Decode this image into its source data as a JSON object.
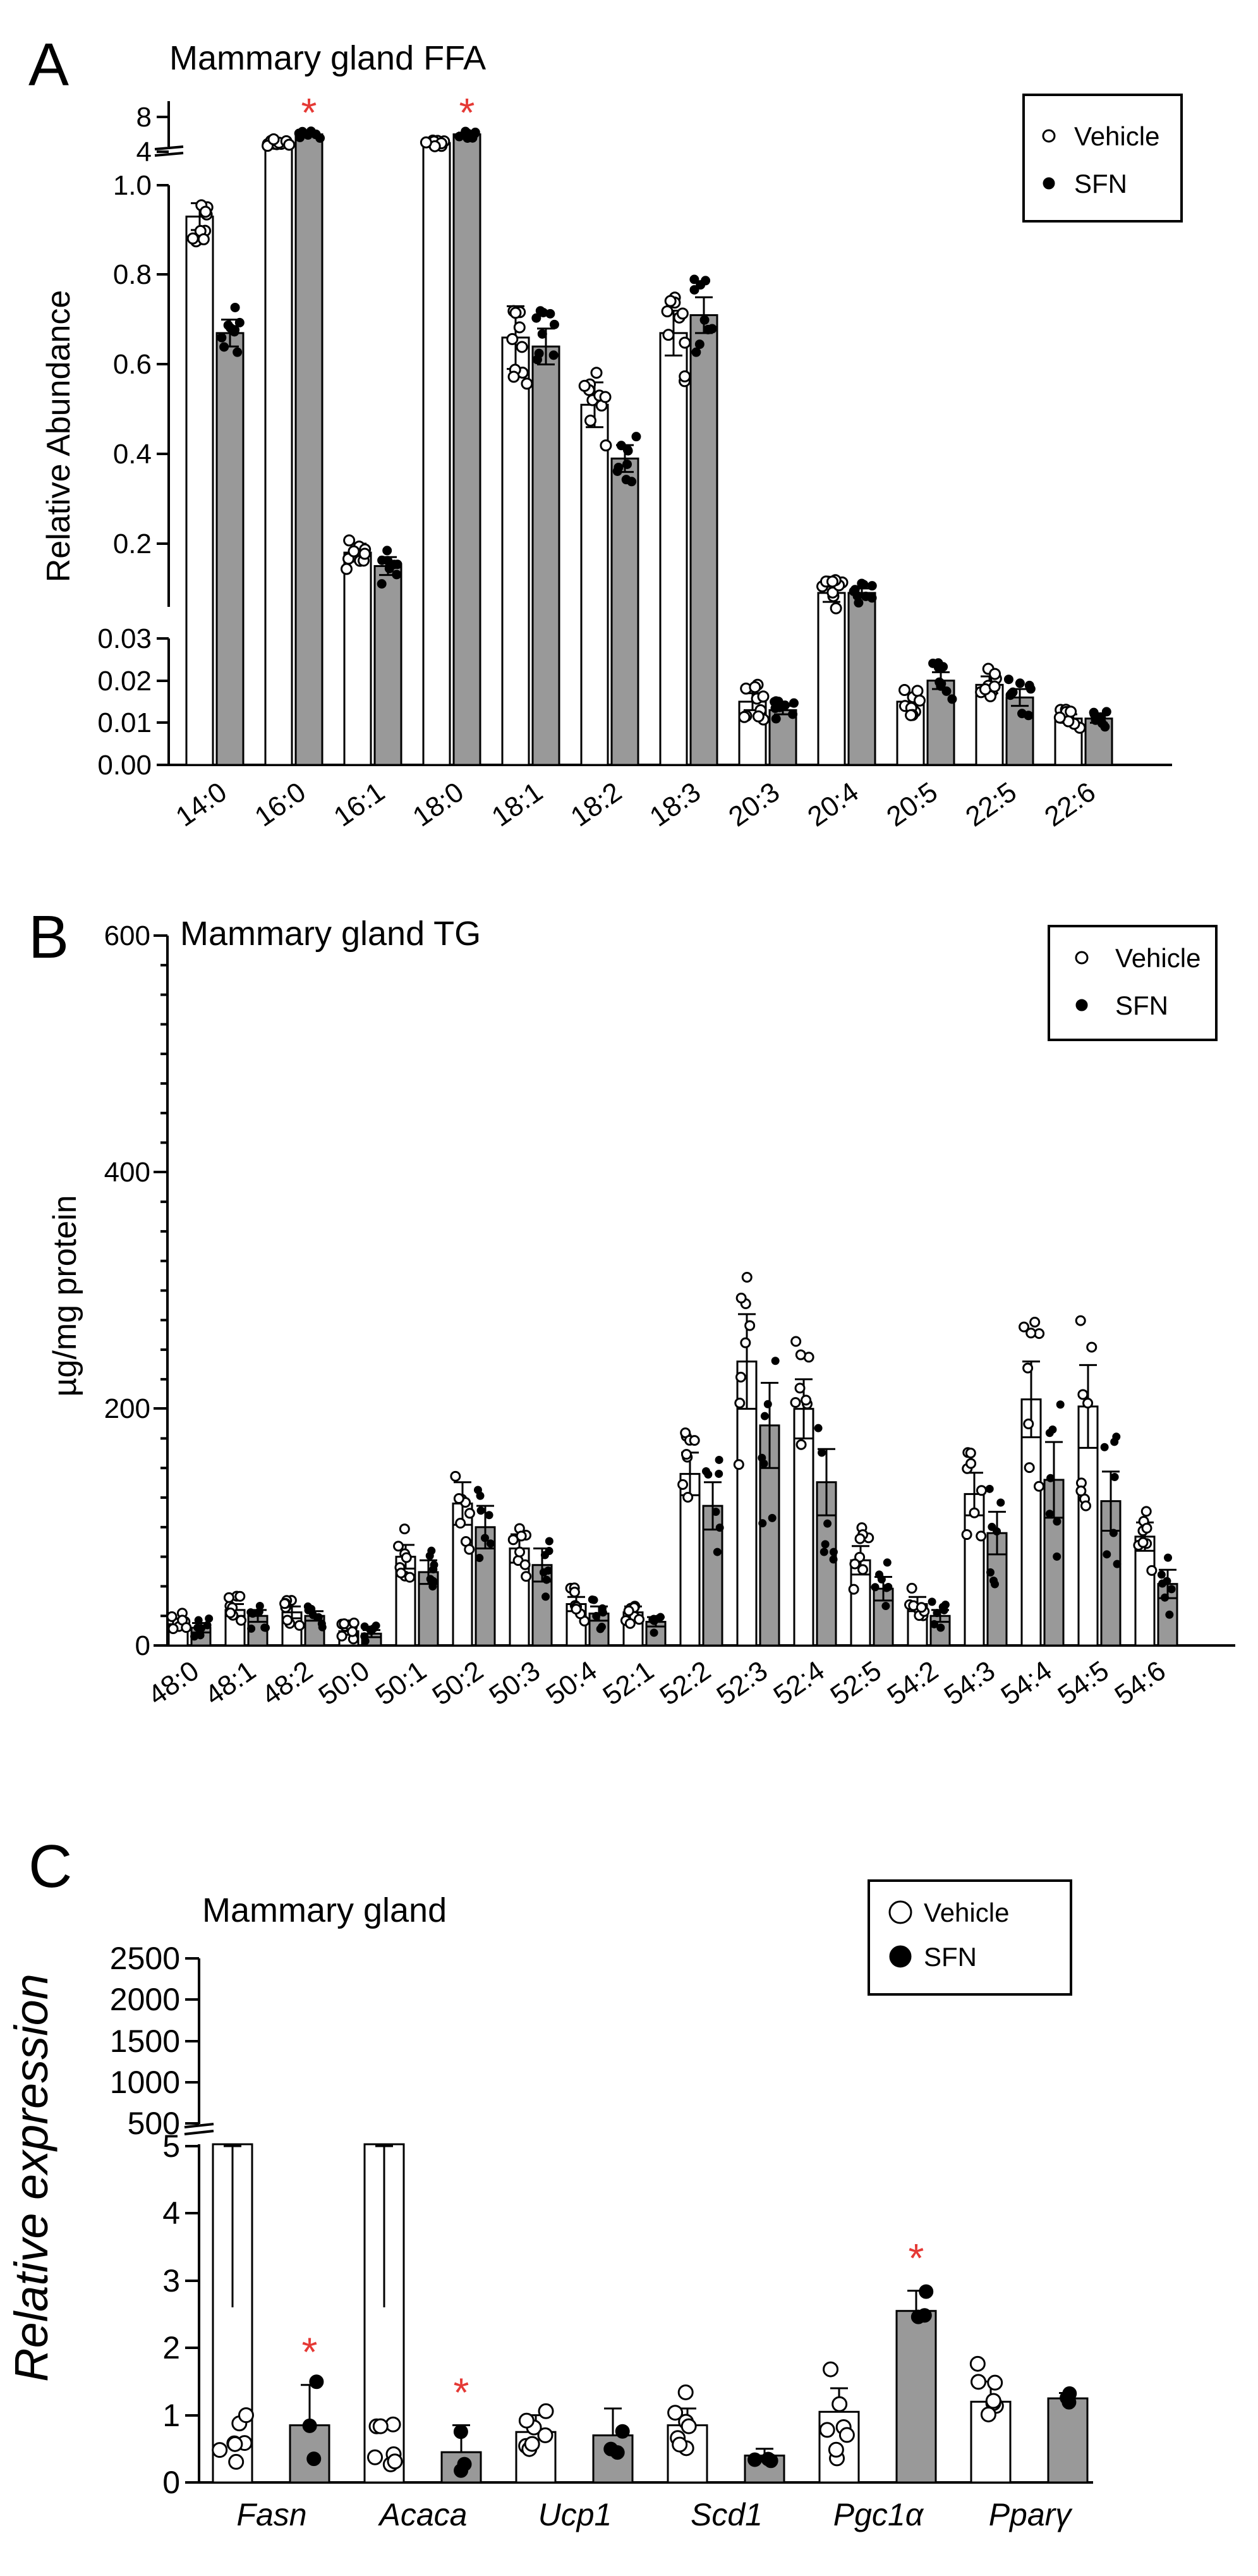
{
  "colors": {
    "vehicle_fill": "#ffffff",
    "sfn_fill": "#999999",
    "significance": "#e53935",
    "axis": "#000000"
  },
  "chart_data": [
    {
      "panel": "A",
      "type": "bar",
      "title": "Mammary gland FFA",
      "ylabel": "Relative  Abundance",
      "xlabel": "",
      "legend": [
        "Vehicle",
        "SFN"
      ],
      "legend_position": "top-right",
      "y_broken_axis": true,
      "y_segments": [
        {
          "range": [
            0,
            0.03
          ],
          "ticks": [
            "0.00",
            "0.01",
            "0.02",
            "0.03"
          ]
        },
        {
          "range": [
            0.05,
            1.0
          ],
          "ticks": [
            "0.2",
            "0.4",
            "0.6",
            "0.8",
            "1.0"
          ]
        },
        {
          "range": [
            3,
            9
          ],
          "ticks": [
            "4",
            "8"
          ]
        }
      ],
      "categories": [
        "14:0",
        "16:0",
        "16:1",
        "18:0",
        "18:1",
        "18:2",
        "18:3",
        "20:3",
        "20:4",
        "20:5",
        "22:5",
        "22:6"
      ],
      "series": [
        {
          "name": "Vehicle",
          "values": [
            0.93,
            5,
            0.18,
            5,
            0.66,
            0.51,
            0.67,
            0.015,
            0.09,
            0.015,
            0.019,
            0.011
          ],
          "sem": [
            0.03,
            0.2,
            0.02,
            0.2,
            0.07,
            0.05,
            0.05,
            0.002,
            0.02,
            0.002,
            0.002,
            0.001
          ]
        },
        {
          "name": "SFN",
          "values": [
            0.67,
            6,
            0.15,
            6,
            0.64,
            0.39,
            0.71,
            0.013,
            0.09,
            0.02,
            0.016,
            0.011
          ],
          "sem": [
            0.03,
            0.2,
            0.02,
            0.2,
            0.04,
            0.03,
            0.04,
            0.001,
            0.01,
            0.002,
            0.002,
            0.001
          ]
        }
      ],
      "significant": [
        "16:0",
        "18:0"
      ],
      "significance_marker": "*"
    },
    {
      "panel": "B",
      "type": "bar",
      "title": "Mammary gland TG",
      "ylabel": "µg/mg protein",
      "xlabel": "",
      "legend": [
        "Vehicle",
        "SFN"
      ],
      "legend_position": "top-right",
      "ylim": [
        0,
        600
      ],
      "yticks": [
        "0",
        "200",
        "400",
        "600"
      ],
      "categories": [
        "48:0",
        "48:1",
        "48:2",
        "50:0",
        "50:1",
        "50:2",
        "50:3",
        "50:4",
        "52:1",
        "52:2",
        "52:3",
        "52:4",
        "52:5",
        "54:2",
        "54:3",
        "54:4",
        "54:5",
        "54:6"
      ],
      "series": [
        {
          "name": "Vehicle",
          "values": [
            18,
            30,
            28,
            12,
            75,
            120,
            82,
            35,
            28,
            145,
            240,
            200,
            72,
            35,
            128,
            208,
            202,
            92
          ],
          "sem": [
            4,
            5,
            5,
            3,
            10,
            18,
            12,
            6,
            5,
            18,
            40,
            25,
            12,
            6,
            18,
            32,
            35,
            12
          ]
        },
        {
          "name": "SFN",
          "values": [
            15,
            25,
            25,
            10,
            62,
            100,
            68,
            27,
            20,
            118,
            186,
            138,
            48,
            25,
            95,
            140,
            122,
            52
          ],
          "sem": [
            4,
            5,
            4,
            3,
            10,
            18,
            14,
            6,
            4,
            20,
            36,
            28,
            10,
            5,
            18,
            32,
            25,
            12
          ]
        }
      ]
    },
    {
      "panel": "C",
      "type": "bar",
      "title": "Mammary gland",
      "ylabel": "Relative expression",
      "xlabel": "",
      "legend": [
        "Vehicle",
        "SFN"
      ],
      "legend_position": "top-right",
      "y_broken_axis": true,
      "y_segments": [
        {
          "range": [
            0,
            5
          ],
          "ticks": [
            "0",
            "1",
            "2",
            "3",
            "4",
            "5"
          ]
        },
        {
          "range": [
            300,
            2500
          ],
          "ticks": [
            "500",
            "1000",
            "1500",
            "2000",
            "2500"
          ]
        }
      ],
      "categories": [
        "Fasn",
        "Acaca",
        "Ucp1",
        "Scd1",
        "Pgc1α",
        "Pparγ"
      ],
      "series": [
        {
          "name": "Vehicle",
          "values": [
            480,
            170,
            0.75,
            0.85,
            1.05,
            1.2
          ],
          "sem": [
            300,
            160,
            0.25,
            0.25,
            0.35,
            0.3
          ]
        },
        {
          "name": "SFN",
          "values": [
            0.85,
            0.45,
            0.7,
            0.4,
            2.55,
            1.25
          ],
          "sem": [
            0.6,
            0.4,
            0.4,
            0.1,
            0.3,
            0.08
          ]
        }
      ],
      "significant": [
        "Fasn",
        "Acaca",
        "Pgc1α"
      ],
      "significance_marker": "*"
    }
  ]
}
